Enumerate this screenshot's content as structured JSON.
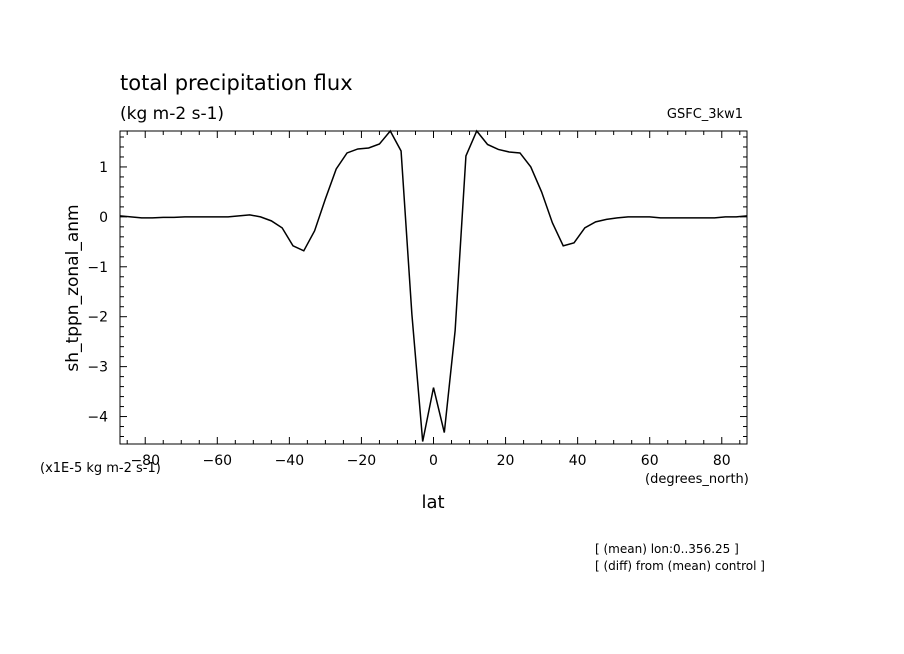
{
  "chart_data": {
    "type": "line",
    "title": "total precipitation flux",
    "subtitle": "(kg m-2 s-1)",
    "model_label": "GSFC_3kw1",
    "xlabel": "lat",
    "xunits": "(degrees_north)",
    "ylabel": "sh_tppn_zonal_anm",
    "yscale_note": "(x1E-5 kg m-2 s-1)",
    "notes": [
      "[ (mean) lon:0..356.25 ]",
      "[ (diff) from (mean) control ]"
    ],
    "xlim": [
      -87,
      87
    ],
    "ylim": [
      -4.55,
      1.72
    ],
    "xticks": [
      -80,
      -60,
      -40,
      -20,
      0,
      20,
      40,
      60,
      80
    ],
    "yticks": [
      -4,
      -3,
      -2,
      -1,
      0,
      1
    ],
    "grid": false,
    "line_color": "#000000",
    "series": [
      {
        "x": [
          -87,
          -84,
          -81,
          -78,
          -75,
          -72,
          -69,
          -66,
          -63,
          -60,
          -57,
          -54,
          -51,
          -48,
          -45,
          -42,
          -39,
          -36,
          -33,
          -30,
          -27,
          -24,
          -21,
          -18,
          -15,
          -12,
          -9,
          -6,
          -3,
          0,
          3,
          6,
          9,
          12,
          15,
          18,
          21,
          24,
          27,
          30,
          33,
          36,
          39,
          42,
          45,
          48,
          51,
          54,
          57,
          60,
          63,
          66,
          69,
          72,
          75,
          78,
          81,
          84,
          87
        ],
        "y": [
          0.02,
          0.0,
          -0.02,
          -0.02,
          -0.01,
          -0.01,
          0.0,
          0.0,
          0.0,
          0.0,
          0.0,
          0.02,
          0.04,
          0.0,
          -0.08,
          -0.22,
          -0.58,
          -0.68,
          -0.28,
          0.36,
          0.96,
          1.28,
          1.36,
          1.38,
          1.46,
          1.72,
          1.32,
          -1.95,
          -4.5,
          -3.42,
          -4.32,
          -2.28,
          1.22,
          1.72,
          1.45,
          1.35,
          1.3,
          1.28,
          1.0,
          0.5,
          -0.12,
          -0.58,
          -0.52,
          -0.22,
          -0.1,
          -0.05,
          -0.02,
          0.0,
          0.0,
          0.0,
          -0.02,
          -0.02,
          -0.02,
          -0.02,
          -0.02,
          -0.02,
          0.0,
          0.0,
          0.02
        ]
      }
    ]
  }
}
